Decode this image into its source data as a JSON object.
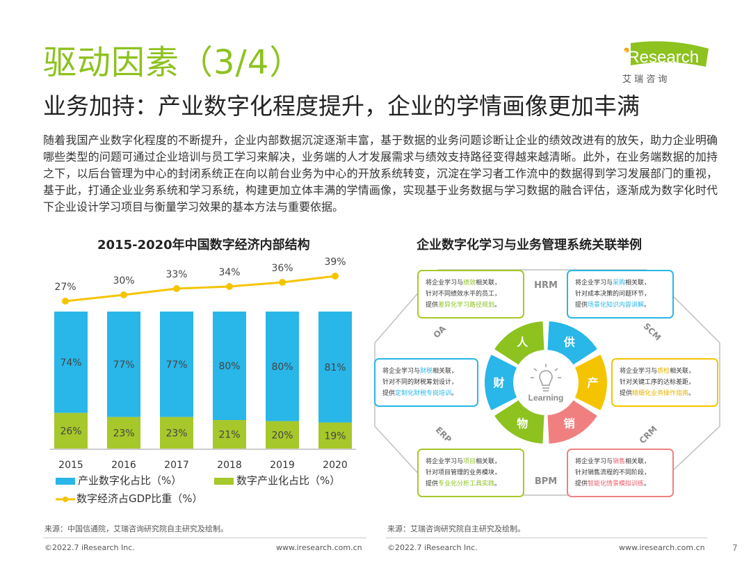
{
  "header": {
    "title": "驱动因素（3/4）",
    "subtitle": "业务加持：产业数字化程度提升，企业的学情画像更加丰满",
    "logo_text": "iResearch",
    "logo_sub": "艾 瑞 咨 询"
  },
  "body_text": "随着我国产业数字化程度的不断提升，企业内部数据沉淀逐渐丰富，基于数据的业务问题诊断让企业的绩效改进有的放矢，助力企业明确哪些类型的问题可通过企业培训与员工学习来解决，业务端的人才发展需求与绩效支持路径变得越来越清晰。此外，在业务端数据的加持之下，以后台管理为中心的封闭系统正在向以前台业务为中心的开放系统转变，沉淀在学习者工作流中的数据得到学习发展部门的重视，基于此，打通企业业务系统和学习系统，构建更加立体丰满的学情画像，实现基于业务数据与学习数据的融合评估，逐渐成为数字化时代下企业设计学习项目与衡量学习效果的基本方法与重要依据。",
  "colors": {
    "green": "#8dc21f",
    "blue": "#29b6e8",
    "lime": "#a6c82a",
    "yellow": "#f5c400",
    "red": "#f08080"
  },
  "chart_data": {
    "type": "bar",
    "title": "2015-2020年中国数字经济内部结构",
    "categories": [
      "2015",
      "2016",
      "2017",
      "2018",
      "2019",
      "2020"
    ],
    "series": [
      {
        "name": "产业数字化占比（%）",
        "values": [
          74,
          77,
          77,
          80,
          80,
          81
        ],
        "labels": [
          "74%",
          "77%",
          "77%",
          "80%",
          "80%",
          "81%"
        ],
        "color": "#29b6e8"
      },
      {
        "name": "数字产业化占比（%）",
        "values": [
          26,
          23,
          23,
          21,
          20,
          19
        ],
        "labels": [
          "26%",
          "23%",
          "23%",
          "21%",
          "20%",
          "19%"
        ],
        "color": "#a6c82a"
      },
      {
        "name": "数字经济占GDP比重（%）",
        "values": [
          27,
          30,
          33,
          34,
          36,
          39
        ],
        "labels": [
          "27%",
          "30%",
          "33%",
          "34%",
          "36%",
          "39%"
        ],
        "color": "#f5c400",
        "kind": "line"
      }
    ],
    "ylim": [
      0,
      100
    ],
    "legend": {
      "a": "产业数字化占比（%）",
      "b": "数字产业化占比（%）",
      "c": "数字经济占GDP比重（%）"
    }
  },
  "diagram": {
    "title": "企业数字化学习与业务管理系统关联举例",
    "center": "Learning",
    "segments": [
      "人",
      "供",
      "产",
      "销",
      "物",
      "财"
    ],
    "systems": [
      "HRM",
      "SCM",
      "CRM",
      "BPM",
      "ERP",
      "OA"
    ],
    "cards": [
      {
        "l1a": "将企业学习与",
        "k1": "绩效",
        "l1b": "相关联，",
        "l2": "针对不同绩效水平的员工，",
        "l3a": "提供",
        "k3": "差异化学习路径规划",
        "l3b": "。"
      },
      {
        "l1a": "将企业学习与",
        "k1": "采购",
        "l1b": "相关联，",
        "l2": "针对成本决策的问题环节，",
        "l3a": "提供",
        "k3": "场景化知识内容讲解",
        "l3b": "。"
      },
      {
        "l1a": "将企业学习与",
        "k1": "财税",
        "l1b": "相关联，",
        "l2": "针对不同的财税筹划设计，",
        "l3a": "提供",
        "k3": "定制化财税专岗培训",
        "l3b": "。"
      },
      {
        "l1a": "将企业学习与",
        "k1": "质检",
        "l1b": "相关联，",
        "l2": "针对关键工序的达标差距，",
        "l3a": "提供",
        "k3": "精细化业务操作指南",
        "l3b": "。"
      },
      {
        "l1a": "将企业学习与",
        "k1": "项目",
        "l1b": "相关联，",
        "l2": "针对项目管理的业务模块，",
        "l3a": "提供",
        "k3": "专业化分析工具实践",
        "l3b": "。"
      },
      {
        "l1a": "将企业学习与",
        "k1": "销售",
        "l1b": "相关联，",
        "l2": "针对销售流程的不同阶段，",
        "l3a": "提供",
        "k3": "智能化情景模拟训练",
        "l3b": "。"
      }
    ]
  },
  "sources": {
    "left": "来源：中国信通院，艾瑞咨询研究院自主研究及绘制。",
    "right": "来源：艾瑞咨询研究院自主研究及绘制。"
  },
  "footer": {
    "copyright": "©2022.7 iResearch Inc.",
    "url": "www.iresearch.com.cn",
    "page": "7"
  }
}
